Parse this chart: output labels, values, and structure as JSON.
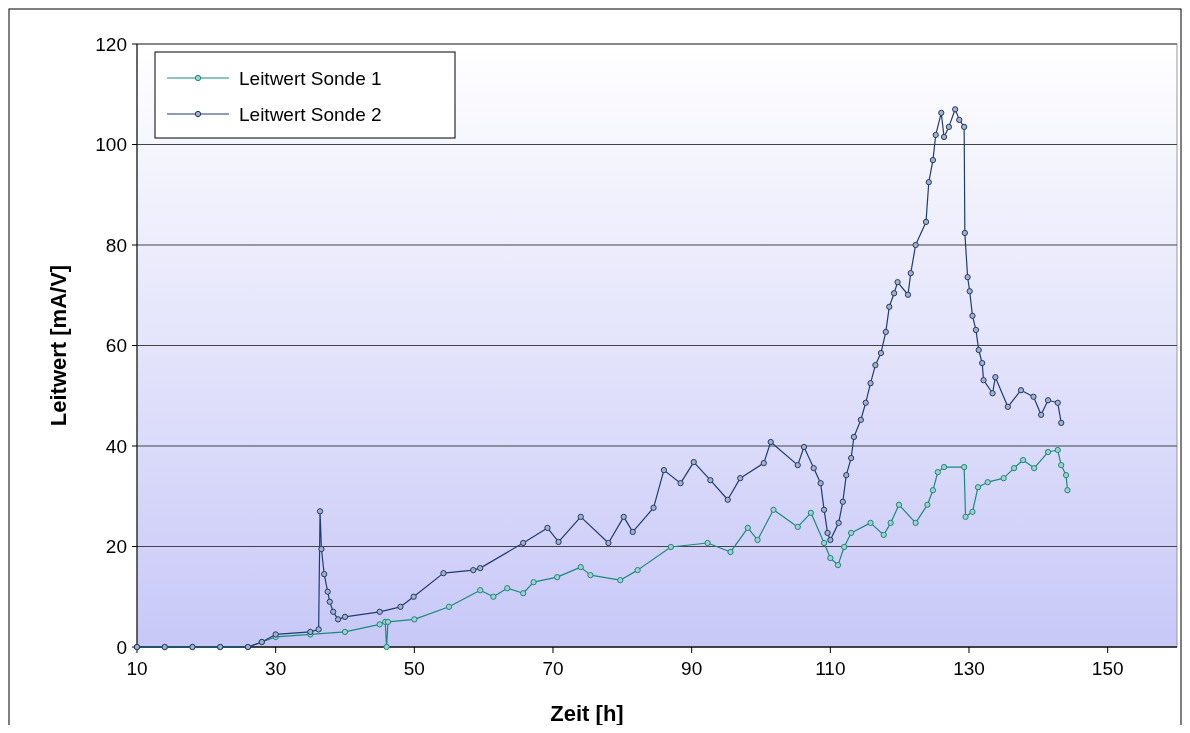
{
  "chart_data": {
    "type": "line",
    "xlabel": "Zeit [h]",
    "ylabel": "Leitwert [mA/V]",
    "xlim": [
      10,
      160
    ],
    "ylim": [
      0,
      120
    ],
    "xticks": [
      10,
      30,
      50,
      70,
      90,
      110,
      130,
      150
    ],
    "yticks": [
      0,
      20,
      40,
      60,
      80,
      100,
      120
    ],
    "grid": "y",
    "legend": "top left",
    "marker": "circle",
    "line_style": "solid",
    "series": [
      {
        "name": "Leitwert Sonde 1",
        "color": "#1a8a7a",
        "x": [
          10,
          14,
          18,
          22,
          26,
          28,
          30,
          35,
          40,
          45,
          45.8,
          46,
          46.2,
          50,
          55,
          59.5,
          61.4,
          63.4,
          65.7,
          67.2,
          70.6,
          74,
          75.4,
          79.7,
          82.2,
          87,
          92.3,
          95.6,
          98.1,
          99.5,
          101.8,
          105.3,
          107.2,
          109.1,
          110,
          111.1,
          112,
          113,
          115.8,
          117.7,
          118.7,
          119.9,
          122.3,
          124,
          124.8,
          125.5,
          126.4,
          129.3,
          129.5,
          130.5,
          131.3,
          132.7,
          135,
          136.5,
          137.8,
          139.4,
          141.4,
          142.8,
          143.3,
          144,
          144.2
        ],
        "values": [
          0,
          0,
          0,
          0,
          0,
          1,
          2,
          2.5,
          3,
          4.5,
          5,
          0,
          5,
          5.5,
          8,
          11.3,
          10,
          11.7,
          10.7,
          12.9,
          13.9,
          15.9,
          14.3,
          13.3,
          15.3,
          19.9,
          20.7,
          18.9,
          23.7,
          21.3,
          27.3,
          23.9,
          26.7,
          20.7,
          17.7,
          16.3,
          19.9,
          22.7,
          24.7,
          22.3,
          24.7,
          28.3,
          24.7,
          28.3,
          31.2,
          34.8,
          35.8,
          35.8,
          25.9,
          26.9,
          31.8,
          32.8,
          33.6,
          35.6,
          37.2,
          35.6,
          38.8,
          39.2,
          36.2,
          34.2,
          31.2
        ]
      },
      {
        "name": "Leitwert Sonde 2",
        "color": "#1f3c6e",
        "x": [
          10,
          14,
          18,
          22,
          26,
          28,
          30,
          35,
          36.2,
          36.4,
          36.6,
          37,
          37.5,
          37.8,
          38.3,
          39,
          40,
          45,
          48,
          49.9,
          54.2,
          58.5,
          59.5,
          65.7,
          69.2,
          70.8,
          74,
          78,
          80.2,
          81.5,
          84.5,
          86,
          88.4,
          90.3,
          92.7,
          95.2,
          97,
          100.4,
          101.4,
          105.3,
          106.2,
          107.6,
          108.6,
          109.1,
          109.6,
          110,
          111.2,
          111.8,
          112.3,
          113,
          113.4,
          114.4,
          115.1,
          115.8,
          116.5,
          117.3,
          118,
          118.5,
          119.2,
          119.7,
          121.2,
          121.6,
          122.3,
          123.8,
          124.2,
          124.8,
          125.2,
          126,
          126.4,
          127.1,
          128,
          128.6,
          129.3,
          129.4,
          129.8,
          130.1,
          130.5,
          131,
          131.4,
          131.9,
          132.1,
          133.4,
          133.8,
          135.6,
          137.5,
          139.3,
          140.4,
          141.4,
          142.8,
          143.3
        ],
        "values": [
          0,
          0,
          0,
          0,
          0,
          1,
          2.5,
          3,
          3.5,
          27,
          19.5,
          14.5,
          11,
          9,
          7,
          5.5,
          6,
          7,
          8,
          10,
          14.7,
          15.3,
          15.7,
          20.7,
          23.7,
          20.9,
          25.9,
          20.7,
          25.9,
          22.9,
          27.7,
          35.2,
          32.6,
          36.8,
          33.2,
          29.3,
          33.6,
          36.6,
          40.8,
          36.2,
          39.8,
          35.6,
          32.6,
          27.3,
          22.7,
          21.3,
          24.7,
          28.9,
          34.2,
          37.6,
          41.8,
          45.2,
          48.6,
          52.5,
          56.1,
          58.5,
          62.7,
          67.7,
          70.4,
          72.6,
          70.1,
          74.4,
          80,
          84.6,
          92.5,
          96.9,
          101.9,
          106.3,
          101.5,
          103.5,
          107,
          104.9,
          103.5,
          82.4,
          73.6,
          70.8,
          65.9,
          63.1,
          59.1,
          56.5,
          53.1,
          50.5,
          53.7,
          47.8,
          51.1,
          49.8,
          46.2,
          49.1,
          48.6,
          44.6
        ]
      }
    ]
  }
}
